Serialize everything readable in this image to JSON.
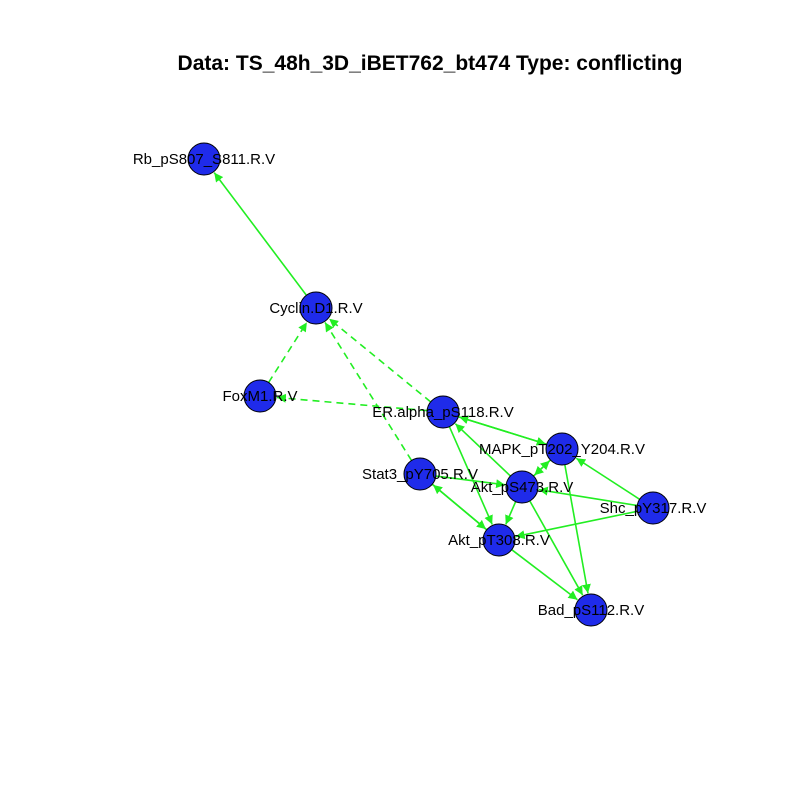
{
  "title": "Data: TS_48h_3D_iBET762_bt474 Type: conflicting",
  "colors": {
    "node_fill": "#1f2bea",
    "node_stroke": "#000000",
    "edge": "#22ee22",
    "label": "#000000"
  },
  "nodes": [
    {
      "id": "rb",
      "label": "Rb_pS807_S811.R.V"
    },
    {
      "id": "cyclin",
      "label": "Cyclin.D1.R.V"
    },
    {
      "id": "foxm1",
      "label": "FoxM1.R.V"
    },
    {
      "id": "er",
      "label": "ER.alpha_pS118.R.V"
    },
    {
      "id": "mapk",
      "label": "MAPK_pT202_Y204.R.V"
    },
    {
      "id": "stat3",
      "label": "Stat3_pY705.R.V"
    },
    {
      "id": "akt473",
      "label": "Akt_pS473.R.V"
    },
    {
      "id": "shc",
      "label": "Shc_pY317.R.V"
    },
    {
      "id": "akt308",
      "label": "Akt_pT308.R.V"
    },
    {
      "id": "bad",
      "label": "Bad_pS112.R.V"
    }
  ],
  "edges": [
    {
      "from": "cyclin",
      "to": "rb",
      "style": "solid"
    },
    {
      "from": "foxm1",
      "to": "cyclin",
      "style": "dashed"
    },
    {
      "from": "er",
      "to": "cyclin",
      "style": "dashed"
    },
    {
      "from": "er",
      "to": "foxm1",
      "style": "dashed"
    },
    {
      "from": "stat3",
      "to": "cyclin",
      "style": "dashed"
    },
    {
      "from": "er",
      "to": "mapk",
      "style": "solid"
    },
    {
      "from": "mapk",
      "to": "er",
      "style": "solid"
    },
    {
      "from": "akt473",
      "to": "er",
      "style": "solid"
    },
    {
      "from": "akt473",
      "to": "mapk",
      "style": "solid"
    },
    {
      "from": "mapk",
      "to": "akt473",
      "style": "solid"
    },
    {
      "from": "shc",
      "to": "mapk",
      "style": "solid"
    },
    {
      "from": "shc",
      "to": "akt473",
      "style": "solid"
    },
    {
      "from": "shc",
      "to": "akt308",
      "style": "solid"
    },
    {
      "from": "akt473",
      "to": "akt308",
      "style": "solid"
    },
    {
      "from": "stat3",
      "to": "akt473",
      "style": "solid"
    },
    {
      "from": "akt308",
      "to": "stat3",
      "style": "solid"
    },
    {
      "from": "stat3",
      "to": "akt308",
      "style": "solid"
    },
    {
      "from": "er",
      "to": "akt308",
      "style": "solid"
    },
    {
      "from": "akt308",
      "to": "bad",
      "style": "solid"
    },
    {
      "from": "akt473",
      "to": "bad",
      "style": "solid"
    },
    {
      "from": "mapk",
      "to": "bad",
      "style": "solid"
    }
  ]
}
